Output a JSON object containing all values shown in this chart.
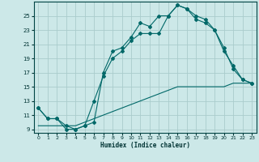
{
  "xlabel": "Humidex (Indice chaleur)",
  "bg_color": "#cce8e8",
  "grid_color": "#aacccc",
  "line_color": "#006868",
  "xlim": [
    -0.5,
    23.5
  ],
  "ylim": [
    8.5,
    27
  ],
  "yticks": [
    9,
    11,
    13,
    15,
    17,
    19,
    21,
    23,
    25
  ],
  "xticks": [
    0,
    1,
    2,
    3,
    4,
    5,
    6,
    7,
    8,
    9,
    10,
    11,
    12,
    13,
    14,
    15,
    16,
    17,
    18,
    19,
    20,
    21,
    22,
    23
  ],
  "line1": {
    "x": [
      0,
      1,
      2,
      3,
      4,
      5,
      6,
      7,
      8,
      9,
      10,
      11,
      12,
      13,
      14,
      15,
      16,
      17,
      18,
      19,
      20,
      21,
      22,
      23
    ],
    "y": [
      12,
      10.5,
      10.5,
      9.0,
      9.0,
      9.5,
      10.0,
      17.0,
      20.0,
      20.5,
      22.0,
      24.0,
      23.5,
      25.0,
      25.0,
      26.5,
      26.0,
      25.0,
      24.5,
      23.0,
      20.5,
      17.5,
      16.0,
      15.5
    ]
  },
  "line2": {
    "x": [
      0,
      1,
      2,
      3,
      4,
      5,
      6,
      7,
      8,
      9,
      10,
      11,
      12,
      13,
      14,
      15,
      16,
      17,
      18,
      19,
      20,
      21,
      22,
      23
    ],
    "y": [
      12,
      10.5,
      10.5,
      9.5,
      9.0,
      9.5,
      13.0,
      16.5,
      19.0,
      20.0,
      21.5,
      22.5,
      22.5,
      22.5,
      25.0,
      26.5,
      26.0,
      24.5,
      24.0,
      23.0,
      20.0,
      18.0,
      16.0,
      15.5
    ]
  },
  "line3": {
    "x": [
      0,
      1,
      2,
      3,
      4,
      5,
      6,
      7,
      8,
      9,
      10,
      11,
      12,
      13,
      14,
      15,
      16,
      17,
      18,
      19,
      20,
      21,
      22,
      23
    ],
    "y": [
      9.5,
      9.5,
      9.5,
      9.5,
      9.5,
      10.0,
      10.5,
      11.0,
      11.5,
      12.0,
      12.5,
      13.0,
      13.5,
      14.0,
      14.5,
      15.0,
      15.0,
      15.0,
      15.0,
      15.0,
      15.0,
      15.5,
      15.5,
      15.5
    ]
  }
}
